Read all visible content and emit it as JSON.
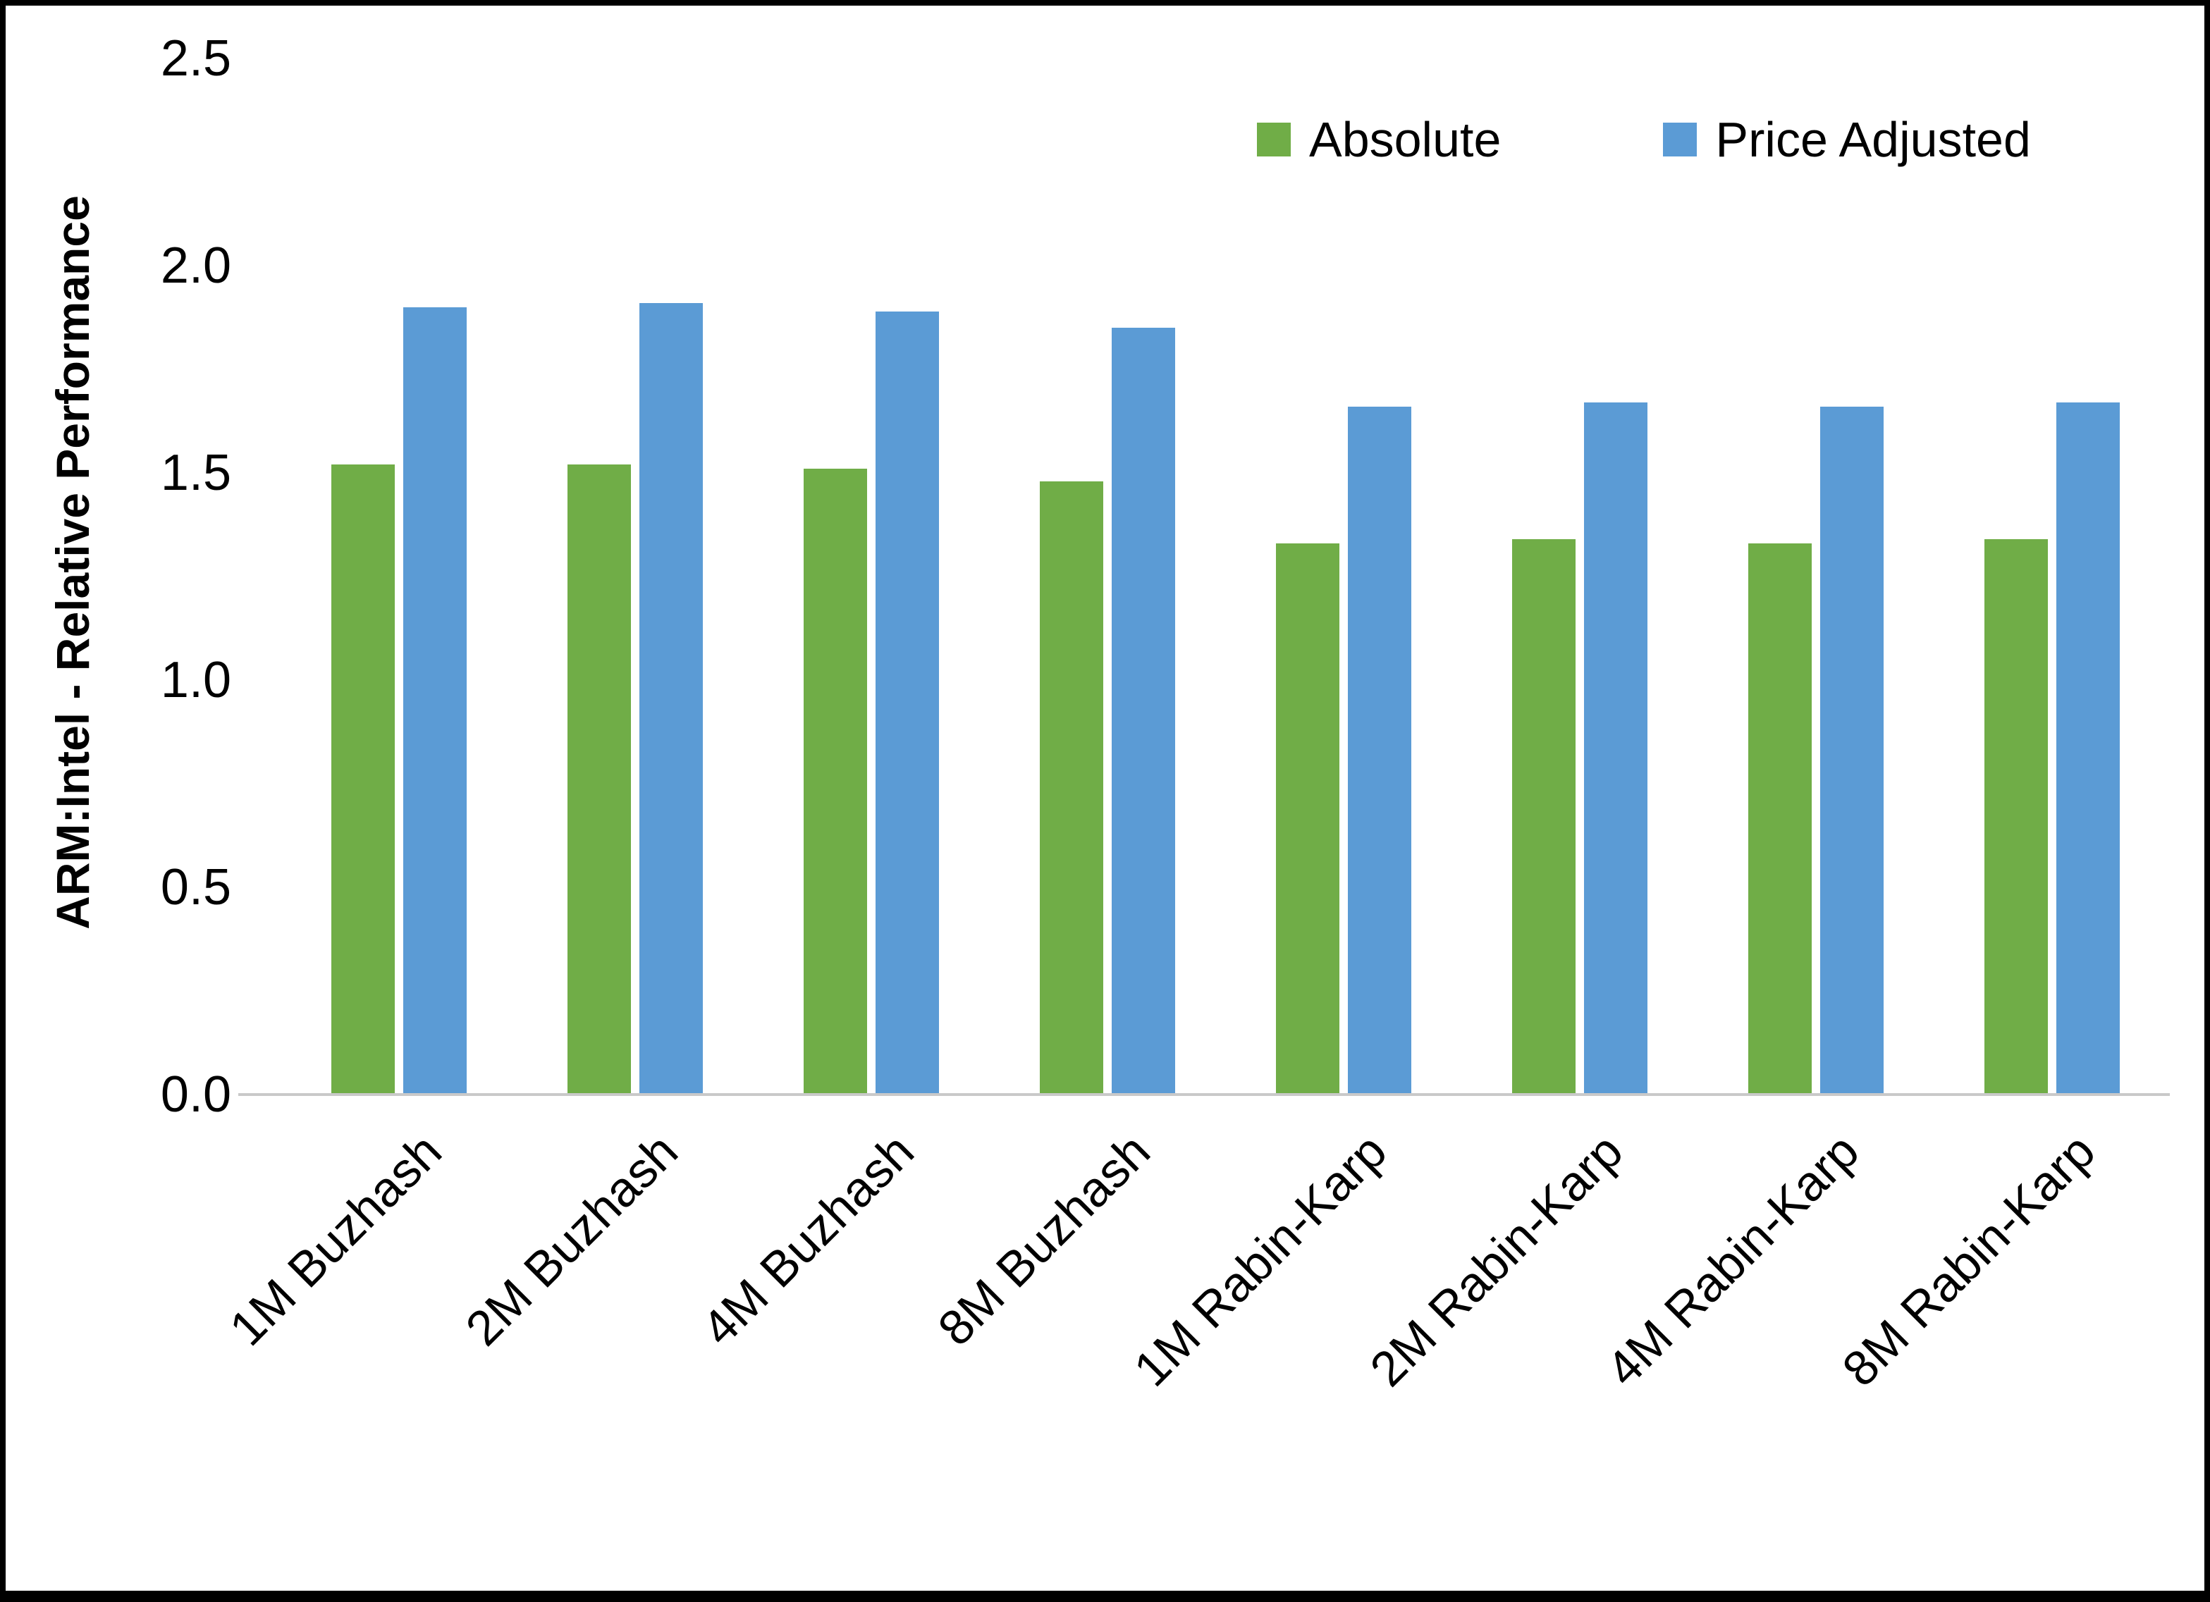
{
  "chart_data": {
    "type": "bar",
    "title": "",
    "xlabel": "",
    "ylabel": "ARM:Intel - Relative Performance",
    "ylim": [
      0,
      2.5
    ],
    "yticks": [
      "0.0",
      "0.5",
      "1.0",
      "1.5",
      "2.0",
      "2.5"
    ],
    "grid": false,
    "legend_position": "top-right",
    "categories": [
      "1M Buzhash",
      "2M Buzhash",
      "4M Buzhash",
      "8M Buzhash",
      "1M Rabin-Karp",
      "2M Rabin-Karp",
      "4M Rabin-Karp",
      "8M Rabin-Karp"
    ],
    "series": [
      {
        "name": "Absolute",
        "color": "#70AD47",
        "values": [
          1.52,
          1.52,
          1.51,
          1.48,
          1.33,
          1.34,
          1.33,
          1.34
        ]
      },
      {
        "name": "Price Adjusted",
        "color": "#5B9BD5",
        "values": [
          1.9,
          1.91,
          1.89,
          1.85,
          1.66,
          1.67,
          1.66,
          1.67
        ]
      }
    ]
  }
}
